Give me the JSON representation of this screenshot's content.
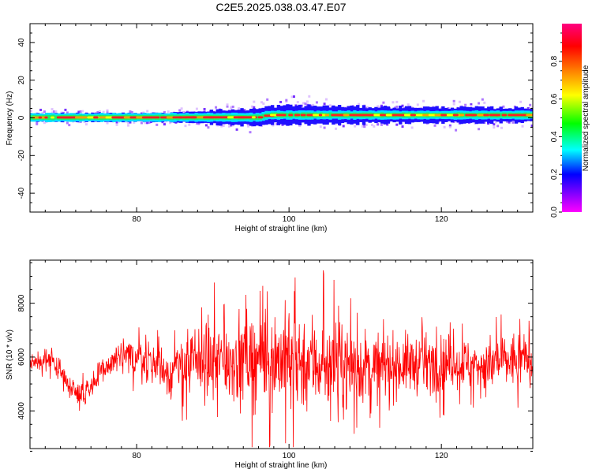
{
  "chart_data": [
    {
      "type": "heatmap",
      "title": "C2E5.2025.038.03.47.E07",
      "xlabel": "Height of straight line (km)",
      "ylabel": "Frequency (Hz)",
      "xlim": [
        66,
        132
      ],
      "ylim": [
        -50,
        50
      ],
      "x_ticks": [
        80,
        100,
        120
      ],
      "y_ticks": [
        -40,
        -20,
        0,
        20,
        40
      ],
      "colorbar": {
        "label": "Normalized spectral amplitude",
        "range": [
          0,
          1
        ],
        "ticks": [
          0.0,
          0.2,
          0.4,
          0.6,
          0.8
        ],
        "colormap": [
          "#ff00ff",
          "#8000ff",
          "#0000ff",
          "#00ffff",
          "#00ff00",
          "#ffff00",
          "#ff8000",
          "#ff0000",
          "#ff0080"
        ]
      },
      "ridge": {
        "center_hz": [
          {
            "x": 66,
            "f": 0.2
          },
          {
            "x": 96,
            "f": 0.3
          },
          {
            "x": 97,
            "f": 1.5
          },
          {
            "x": 132,
            "f": 1.5
          }
        ],
        "core_halfwidth_hz": 1.2,
        "envelope_halfwidth_hz": [
          {
            "x": 66,
            "w": 3.5
          },
          {
            "x": 84,
            "w": 3.5
          },
          {
            "x": 88,
            "w": 5.5
          },
          {
            "x": 100,
            "w": 8
          },
          {
            "x": 110,
            "w": 7
          },
          {
            "x": 132,
            "w": 6
          }
        ]
      },
      "grid": false,
      "legend": "colorbar-right"
    },
    {
      "type": "line",
      "title": "",
      "xlabel": "Height of straight line (km)",
      "ylabel": "SNR (10 * v/v)",
      "xlim": [
        66,
        132
      ],
      "ylim": [
        2600,
        9600
      ],
      "x_ticks": [
        80,
        100,
        120
      ],
      "y_ticks": [
        4000,
        6000,
        8000
      ],
      "series": [
        {
          "color": "#ff0000",
          "mean_profile": [
            {
              "x": 66,
              "y": 5800
            },
            {
              "x": 69,
              "y": 5900
            },
            {
              "x": 71,
              "y": 5000
            },
            {
              "x": 73,
              "y": 4600
            },
            {
              "x": 75,
              "y": 5300
            },
            {
              "x": 77,
              "y": 5900
            },
            {
              "x": 80,
              "y": 6000
            },
            {
              "x": 82,
              "y": 5800
            },
            {
              "x": 84,
              "y": 5400
            },
            {
              "x": 86,
              "y": 5600
            },
            {
              "x": 88,
              "y": 5800
            },
            {
              "x": 92,
              "y": 5900
            },
            {
              "x": 96,
              "y": 6000
            },
            {
              "x": 100,
              "y": 5900
            },
            {
              "x": 104,
              "y": 5800
            },
            {
              "x": 108,
              "y": 5600
            },
            {
              "x": 114,
              "y": 5700
            },
            {
              "x": 120,
              "y": 5800
            },
            {
              "x": 126,
              "y": 5700
            },
            {
              "x": 132,
              "y": 6000
            }
          ],
          "spread": [
            {
              "x": 66,
              "s": 250
            },
            {
              "x": 72,
              "s": 300
            },
            {
              "x": 76,
              "s": 400
            },
            {
              "x": 84,
              "s": 600
            },
            {
              "x": 88,
              "s": 900
            },
            {
              "x": 94,
              "s": 1100
            },
            {
              "x": 100,
              "s": 1300
            },
            {
              "x": 106,
              "s": 1100
            },
            {
              "x": 112,
              "s": 800
            },
            {
              "x": 118,
              "s": 700
            },
            {
              "x": 124,
              "s": 650
            },
            {
              "x": 132,
              "s": 700
            }
          ]
        }
      ],
      "grid": false
    }
  ]
}
